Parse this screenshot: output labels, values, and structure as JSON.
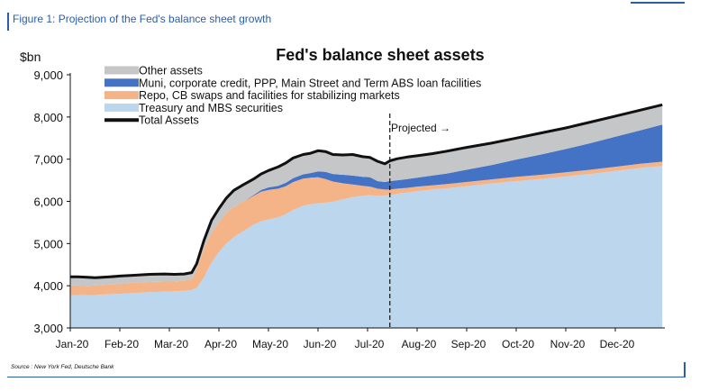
{
  "figure_label": "Figure 1: Projection of the Fed's balance sheet growth",
  "source": "Source : New York Fed, Deutsche Bank",
  "projected_label": "Projected →",
  "colors": {
    "accent": "#2a5ea8",
    "treasury": "#bcd6ee",
    "repo": "#f4b488",
    "muni": "#4472c4",
    "other": "#c4c6c8",
    "total": "#111111"
  },
  "chart_data": {
    "type": "area",
    "title": "Fed's balance sheet assets",
    "ylabel": "$bn",
    "ylim": [
      3000,
      9000
    ],
    "yticks": [
      "3,000",
      "4,000",
      "5,000",
      "6,000",
      "7,000",
      "8,000",
      "9,000"
    ],
    "xtick_labels": [
      "Jan-20",
      "Feb-20",
      "Mar-20",
      "Apr-20",
      "May-20",
      "Jun-20",
      "Jul-20",
      "Aug-20",
      "Sep-20",
      "Oct-20",
      "Nov-20",
      "Dec-20"
    ],
    "x_start_month": 0,
    "x_end_month": 12,
    "projection_start_month": 6.45,
    "legend_position": "top-left",
    "x": [
      0,
      0.15,
      0.35,
      0.5,
      0.8,
      1.0,
      1.3,
      1.6,
      1.9,
      2.1,
      2.3,
      2.45,
      2.55,
      2.7,
      2.85,
      3.0,
      3.15,
      3.3,
      3.5,
      3.7,
      3.85,
      4.0,
      4.2,
      4.35,
      4.5,
      4.7,
      4.85,
      5.0,
      5.15,
      5.3,
      5.5,
      5.7,
      5.9,
      6.05,
      6.2,
      6.35,
      6.45,
      6.6,
      6.8,
      7.0,
      7.3,
      7.6,
      8.0,
      8.5,
      9.0,
      9.5,
      10.0,
      10.5,
      11.0,
      11.5,
      11.95
    ],
    "series": [
      {
        "name": "Treasury and MBS securities",
        "values": [
          3780,
          3770,
          3780,
          3780,
          3800,
          3810,
          3830,
          3850,
          3860,
          3870,
          3880,
          3900,
          3950,
          4200,
          4550,
          4800,
          5000,
          5150,
          5300,
          5450,
          5530,
          5570,
          5620,
          5700,
          5800,
          5900,
          5930,
          5950,
          5970,
          5990,
          6050,
          6100,
          6130,
          6150,
          6130,
          6140,
          6150,
          6180,
          6210,
          6240,
          6280,
          6310,
          6360,
          6420,
          6480,
          6530,
          6590,
          6650,
          6720,
          6790,
          6840
        ]
      },
      {
        "name": "Repo, CB swaps and facilities for stabilizing markets",
        "values": [
          230,
          240,
          220,
          230,
          230,
          240,
          240,
          240,
          240,
          230,
          240,
          260,
          420,
          700,
          700,
          700,
          720,
          720,
          700,
          680,
          700,
          700,
          680,
          660,
          660,
          640,
          630,
          620,
          560,
          480,
          380,
          300,
          240,
          200,
          170,
          140,
          130,
          120,
          110,
          110,
          100,
          100,
          100,
          100,
          100,
          100,
          100,
          100,
          100,
          100,
          100
        ]
      },
      {
        "name": "Muni, corporate credit, PPP, Main Street and Term ABS loan facilities",
        "values": [
          0,
          0,
          0,
          0,
          0,
          0,
          0,
          0,
          0,
          0,
          0,
          0,
          0,
          0,
          0,
          0,
          0,
          0,
          0,
          20,
          40,
          60,
          70,
          80,
          90,
          100,
          110,
          140,
          170,
          180,
          200,
          210,
          210,
          220,
          180,
          180,
          200,
          200,
          210,
          210,
          230,
          250,
          290,
          340,
          410,
          480,
          550,
          630,
          710,
          790,
          880
        ]
      },
      {
        "name": "Other assets",
        "values": [
          200,
          200,
          200,
          180,
          180,
          180,
          180,
          180,
          180,
          170,
          160,
          150,
          150,
          180,
          300,
          330,
          360,
          390,
          400,
          380,
          380,
          400,
          450,
          470,
          480,
          470,
          470,
          490,
          480,
          460,
          470,
          500,
          480,
          470,
          470,
          430,
          480,
          510,
          520,
          520,
          520,
          530,
          530,
          520,
          510,
          510,
          500,
          500,
          490,
          480,
          470
        ]
      },
      {
        "name": "Total Assets",
        "values": [
          4210,
          4210,
          4200,
          4190,
          4210,
          4230,
          4250,
          4270,
          4280,
          4270,
          4280,
          4310,
          4520,
          5080,
          5550,
          5830,
          6080,
          6260,
          6400,
          6530,
          6650,
          6730,
          6820,
          6910,
          7030,
          7110,
          7140,
          7200,
          7180,
          7110,
          7100,
          7110,
          7060,
          7040,
          6950,
          6890,
          6960,
          7010,
          7050,
          7080,
          7130,
          7190,
          7280,
          7380,
          7500,
          7620,
          7740,
          7880,
          8020,
          8160,
          8290
        ]
      }
    ]
  }
}
